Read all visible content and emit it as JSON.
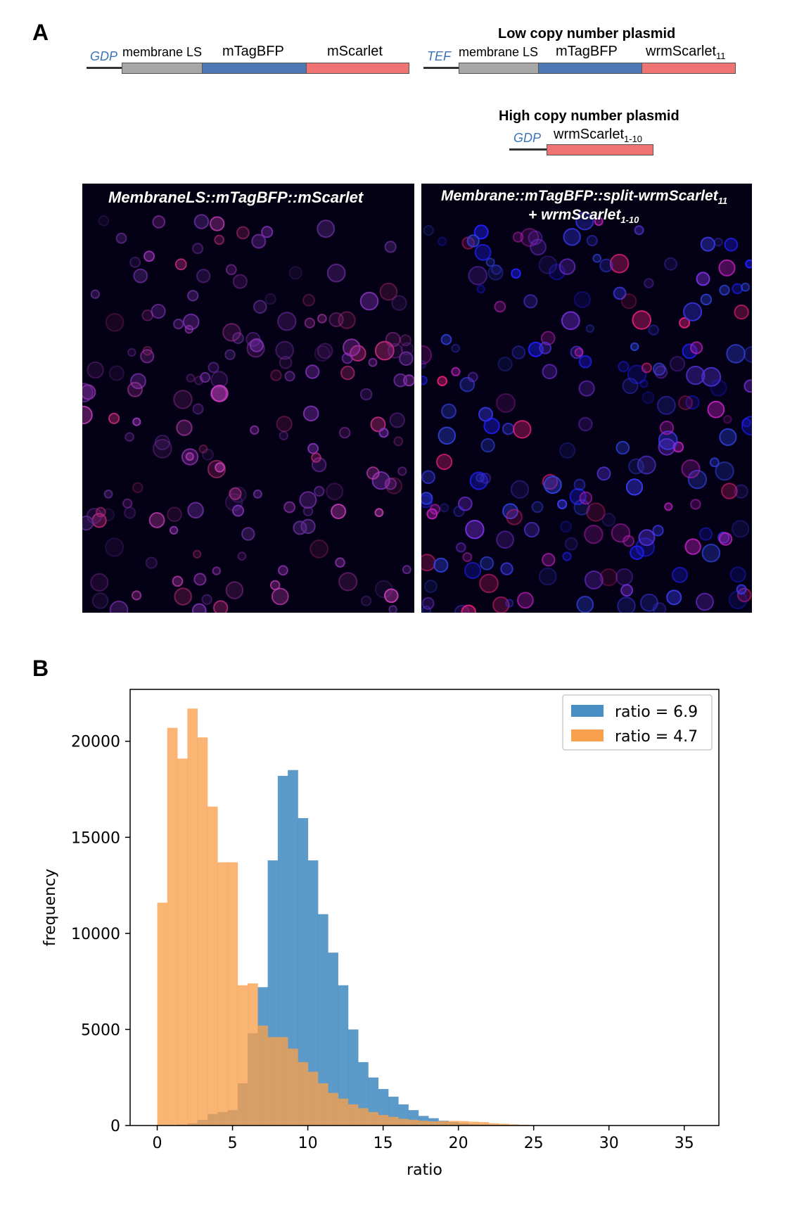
{
  "panel_a": {
    "label": "A",
    "constructs": {
      "left": {
        "promoter": "GDP",
        "segments": [
          {
            "label": "membrane LS",
            "color": "#a7a7a7"
          },
          {
            "label": "mTagBFP",
            "color": "#4c79b3"
          },
          {
            "label": "mScarlet",
            "color": "#ef7373"
          }
        ]
      },
      "low_copy": {
        "title": "Low copy number plasmid",
        "promoter": "TEF",
        "segments": [
          {
            "label": "membrane LS",
            "color": "#a7a7a7"
          },
          {
            "label": "mTagBFP",
            "color": "#4c79b3"
          },
          {
            "label": "wrmScarlet",
            "sub": "11",
            "color": "#ef7373"
          }
        ]
      },
      "high_copy": {
        "title": "High copy number plasmid",
        "promoter": "GDP",
        "segments": [
          {
            "label": "wrmScarlet",
            "sub": "1-10",
            "color": "#ef7373"
          }
        ]
      }
    },
    "images": {
      "left_caption": "MembraneLS::mTagBFP::mScarlet",
      "right_caption_line1": "Membrane::mTagBFP::split-wrmScarlet",
      "right_caption_line1_sub": "11",
      "right_caption_line2": "+ wrmScarlet",
      "right_caption_line2_sub": "1-10"
    }
  },
  "panel_b": {
    "label": "B"
  },
  "chart_data": {
    "type": "bar",
    "xlabel": "ratio",
    "ylabel": "frequency",
    "xlim": [
      -1.8,
      37.3
    ],
    "ylim": [
      0,
      22700
    ],
    "xticks": [
      0,
      5,
      10,
      15,
      20,
      25,
      30,
      35
    ],
    "yticks": [
      0,
      5000,
      10000,
      15000,
      20000
    ],
    "bin_width": 0.667,
    "bin_start": 0,
    "legend_position": "top-right",
    "series": [
      {
        "name": "ratio = 6.9",
        "color": "#4a8fc4",
        "values": [
          0,
          0,
          50,
          120,
          300,
          600,
          700,
          800,
          2200,
          4800,
          7200,
          13800,
          18200,
          18500,
          16000,
          13800,
          11000,
          9000,
          7300,
          5000,
          3300,
          2500,
          1900,
          1500,
          1100,
          800,
          500,
          380,
          250,
          180,
          120,
          80,
          60,
          40,
          30,
          20,
          15,
          10,
          5,
          5
        ]
      },
      {
        "name": "ratio = 4.7",
        "color": "#f9a04d",
        "values": [
          11600,
          20700,
          19100,
          21700,
          20200,
          16600,
          13700,
          13700,
          7300,
          7400,
          5200,
          4600,
          4600,
          4000,
          3300,
          2800,
          2200,
          1700,
          1400,
          1100,
          900,
          700,
          550,
          450,
          350,
          300,
          250,
          220,
          230,
          240,
          230,
          200,
          180,
          120,
          90,
          60,
          40,
          25,
          15,
          10
        ]
      }
    ]
  }
}
